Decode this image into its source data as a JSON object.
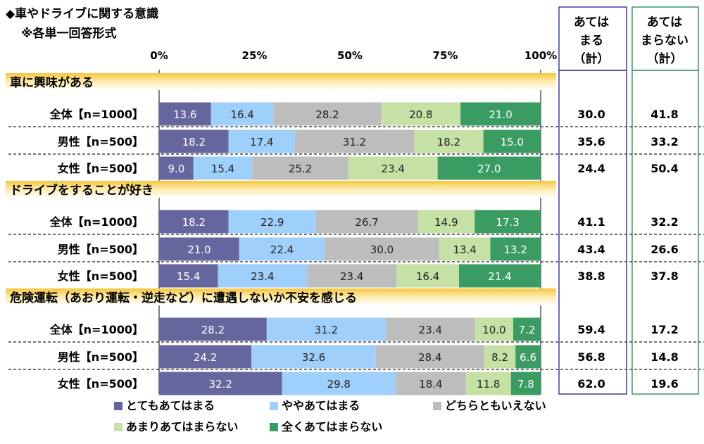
{
  "chart_data": {
    "type": "stacked-bar-100",
    "title": "◆車やドライブに関する意識",
    "subtitle": "※各単一回答形式",
    "axis_ticks": [
      "0%",
      "25%",
      "50%",
      "75%",
      "100%"
    ],
    "xlim": [
      0,
      100
    ],
    "series": [
      {
        "name": "とてもあてはまる",
        "color": "#66669e"
      },
      {
        "name": "ややあてはまる",
        "color": "#9fcffb"
      },
      {
        "name": "どちらともいえない",
        "color": "#bdbdbd"
      },
      {
        "name": "あまりあてはまらない",
        "color": "#c6e1a5"
      },
      {
        "name": "全くあてはまらない",
        "color": "#3a9c62"
      }
    ],
    "summary_headers": [
      {
        "lines": [
          "あては",
          "まる",
          "（計）"
        ],
        "border_color": "#3b3ba0"
      },
      {
        "lines": [
          "あては",
          "まらない",
          "（計）"
        ],
        "border_color": "#3a9c62"
      }
    ],
    "groups": [
      {
        "title": "車に興味がある",
        "rows": [
          {
            "label": "全体【n=1000】",
            "values": [
              13.6,
              16.4,
              28.2,
              20.8,
              21.0
            ],
            "value_labels": [
              "13.6",
              "16.4",
              "28.2",
              "20.8",
              "21.0"
            ],
            "summary": [
              "30.0",
              "41.8"
            ]
          },
          {
            "label": "男性【n=500】",
            "values": [
              18.2,
              17.4,
              31.2,
              18.2,
              15.0
            ],
            "value_labels": [
              "18.2",
              "17.4",
              "31.2",
              "18.2",
              "15.0"
            ],
            "summary": [
              "35.6",
              "33.2"
            ]
          },
          {
            "label": "女性【n=500】",
            "values": [
              9.0,
              15.4,
              25.2,
              23.4,
              27.0
            ],
            "value_labels": [
              "9.0",
              "15.4",
              "25.2",
              "23.4",
              "27.0"
            ],
            "summary": [
              "24.4",
              "50.4"
            ]
          }
        ]
      },
      {
        "title": "ドライブをすることが好き",
        "rows": [
          {
            "label": "全体【n=1000】",
            "values": [
              18.2,
              22.9,
              26.7,
              14.9,
              17.3
            ],
            "value_labels": [
              "18.2",
              "22.9",
              "26.7",
              "14.9",
              "17.3"
            ],
            "summary": [
              "41.1",
              "32.2"
            ]
          },
          {
            "label": "男性【n=500】",
            "values": [
              21.0,
              22.4,
              30.0,
              13.4,
              13.2
            ],
            "value_labels": [
              "21.0",
              "22.4",
              "30.0",
              "13.4",
              "13.2"
            ],
            "summary": [
              "43.4",
              "26.6"
            ]
          },
          {
            "label": "女性【n=500】",
            "values": [
              15.4,
              23.4,
              23.4,
              16.4,
              21.4
            ],
            "value_labels": [
              "15.4",
              "23.4",
              "23.4",
              "16.4",
              "21.4"
            ],
            "summary": [
              "38.8",
              "37.8"
            ]
          }
        ]
      },
      {
        "title": "危険運転（あおり運転・逆走など）に遭遇しないか不安を感じる",
        "rows": [
          {
            "label": "全体【n=1000】",
            "values": [
              28.2,
              31.2,
              23.4,
              10.0,
              7.2
            ],
            "value_labels": [
              "28.2",
              "31.2",
              "23.4",
              "10.0",
              "7.2"
            ],
            "summary": [
              "59.4",
              "17.2"
            ]
          },
          {
            "label": "男性【n=500】",
            "values": [
              24.2,
              32.6,
              28.4,
              8.2,
              6.6
            ],
            "value_labels": [
              "24.2",
              "32.6",
              "28.4",
              "8.2",
              "6.6"
            ],
            "summary": [
              "56.8",
              "14.8"
            ]
          },
          {
            "label": "女性【n=500】",
            "values": [
              32.2,
              29.8,
              18.4,
              11.8,
              7.8
            ],
            "value_labels": [
              "32.2",
              "29.8",
              "18.4",
              "11.8",
              "7.8"
            ],
            "summary": [
              "62.0",
              "19.6"
            ]
          }
        ]
      }
    ]
  }
}
